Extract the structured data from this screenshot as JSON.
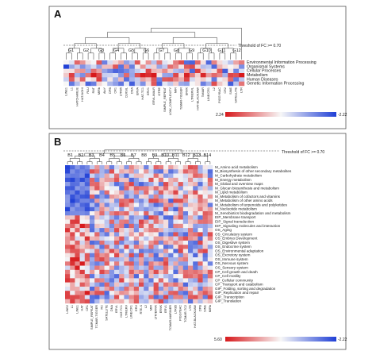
{
  "panel_a": {
    "letter": "A",
    "threshold_label": "Threshold of FC >= 0.70",
    "groups": [
      "G1",
      "G2",
      "G3",
      "G4",
      "G5",
      "G6",
      "G7",
      "G8",
      "G9",
      "G10",
      "G11",
      "G12"
    ],
    "rows": [
      "Environmental Information Processing",
      "Organismal Systems",
      "Cellular Processes",
      "Metabolism",
      "Human Diseases",
      "Genetic Information Processing"
    ],
    "columns": [
      "LINE1",
      "L1",
      "HATCHARLIE",
      "HAT-NOHI",
      "RLU",
      "RAT",
      "MIRb",
      "AluY",
      "DPB",
      "CR1",
      "LTR85",
      "CLRSIL",
      "DNA",
      "ERVA",
      "HAT-TC1",
      "ERV1",
      "ERVL-MALR",
      "OTRE",
      "SIMPLE_REPEAT",
      "LOW_COMPLEXITY",
      "MIR",
      "TcMAR-TIGGER",
      "ERVK",
      "LTR/ERVL",
      "HAT-BLACKJAW",
      "TcMAR",
      "LINE/CR1",
      "L2",
      "PIGGYBAC",
      "CR2",
      "SINE",
      "SATELLITE",
      "LTR"
    ],
    "legend": {
      "max_label": "2.24",
      "min_label": "-2.22"
    }
  },
  "panel_b": {
    "letter": "B",
    "threshold_label": "Threshold of FC >= 0.70",
    "groups": [
      "B1",
      "B2",
      "B3",
      "B4",
      "B5",
      "B6",
      "B7",
      "B8",
      "B9",
      "B10",
      "B11",
      "B12",
      "B13",
      "B14"
    ],
    "rows": [
      "M_Amino acid metabolism",
      "M_Biosynthesis of other secondary metabolites",
      "M_Carbohydrate metabolism",
      "M_Energy metabolism",
      "M_Global and overview maps",
      "M_Glycan biosynthesis and metabolism",
      "M_Lipid metabolism",
      "M_Metabolism of cofactors and vitamins",
      "M_Metabolism of other amino acids",
      "M_Metabolism of terpenoids and polyketides",
      "M_Nucleotide metabolism",
      "M_Xenobiotics biodegradation and metabolism",
      "EIP_Membrane transport",
      "EIP_Signal transduction",
      "EIP_Signaling molecules and interaction",
      "OS_Aging",
      "OS_Circulatory system",
      "OS_Embryo Development",
      "OS_Digestive system",
      "OS_Endocrine system",
      "OS_Environmental adaptation",
      "OS_Excretory system",
      "OS_Immune system",
      "OS_Nervous system",
      "OS_Sensory system",
      "CP_Cell growth and death",
      "CP_Cell motility",
      "CP_Cellular community",
      "CP_Transport and catabolism",
      "GIP_Folding, sorting and degradation",
      "GIP_Replication and repair",
      "GIP_Transcription",
      "GIP_Translation"
    ],
    "columns": [
      "LINE2",
      "L1",
      "LINE1",
      "HAT",
      "CR1",
      "SIMPLE_REPEAT",
      "TCMAR-TIGGER",
      "RC",
      "SATELLITE",
      "DNA",
      "ERVL",
      "HAT-TC1",
      "LTR/ERV",
      "LINE/CR1",
      "ERV",
      "RTE-X",
      "L2",
      "MIR",
      "LTR/ERVK",
      "ERVK",
      "ERV1",
      "TCMAR-MARINER",
      "LTR85",
      "PIGGYBAC",
      "TCMAR-TC2",
      "LTR",
      "HAT-BLACKJAW",
      "DPB",
      "SINE",
      "MIRb"
    ],
    "legend": {
      "max_label": "5.60",
      "min_label": "-2.22"
    }
  }
}
